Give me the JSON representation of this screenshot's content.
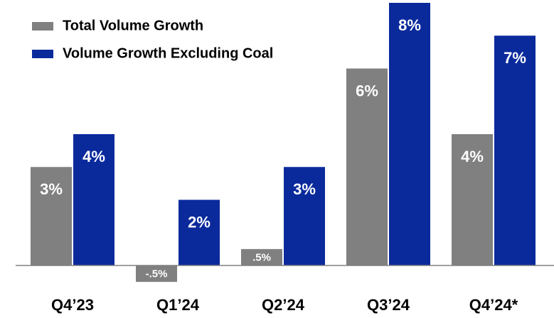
{
  "chart_data": {
    "type": "bar",
    "categories": [
      "Q4’23",
      "Q1’24",
      "Q2’24",
      "Q3’24",
      "Q4’24*"
    ],
    "series": [
      {
        "name": "Total Volume Growth",
        "color": "#808080",
        "values": [
          3,
          -0.5,
          0.5,
          6,
          4
        ],
        "value_labels": [
          "3%",
          "-.5%",
          ".5%",
          "6%",
          "4%"
        ]
      },
      {
        "name": "Volume Growth Excluding Coal",
        "color": "#0a2a9c",
        "values": [
          4,
          2,
          3,
          8,
          7
        ],
        "value_labels": [
          "4%",
          "2%",
          "3%",
          "8%",
          "7%"
        ]
      }
    ]
  }
}
